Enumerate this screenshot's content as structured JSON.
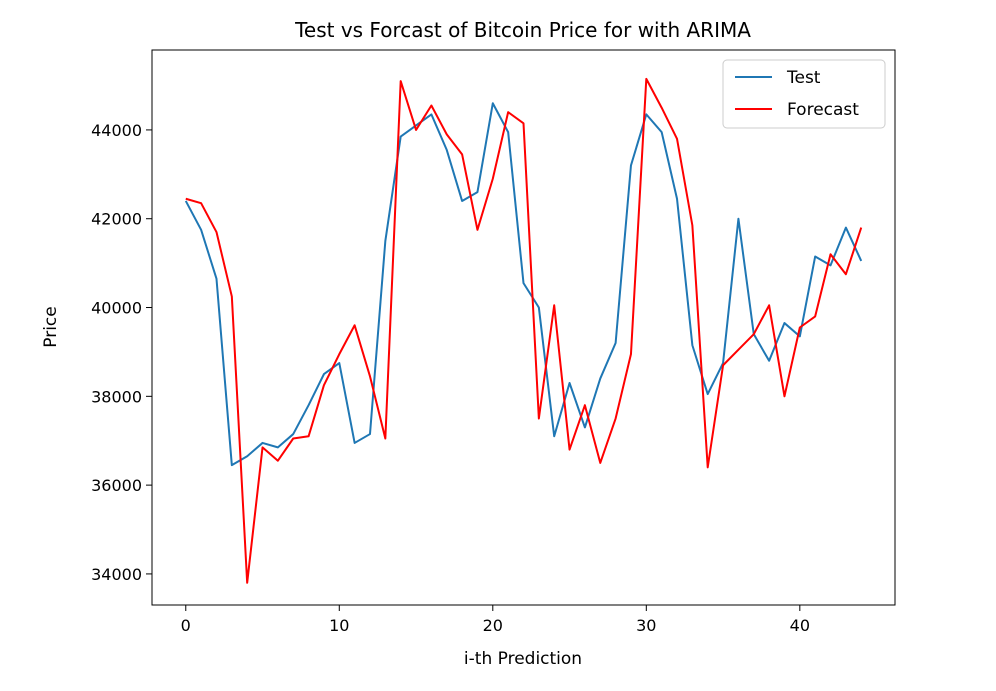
{
  "chart_data": {
    "type": "line",
    "title": "Test vs Forcast of Bitcoin Price for with ARIMA",
    "xlabel": "i-th Prediction",
    "ylabel": "Price",
    "xlim": [
      -2.2,
      46.2
    ],
    "ylim": [
      33300,
      45800
    ],
    "xticks": [
      0,
      10,
      20,
      30,
      40
    ],
    "yticks": [
      34000,
      36000,
      38000,
      40000,
      42000,
      44000
    ],
    "grid": false,
    "legend": "top-right",
    "x": [
      0,
      1,
      2,
      3,
      4,
      5,
      6,
      7,
      8,
      9,
      10,
      11,
      12,
      13,
      14,
      15,
      16,
      17,
      18,
      19,
      20,
      21,
      22,
      23,
      24,
      25,
      26,
      27,
      28,
      29,
      30,
      31,
      32,
      33,
      34,
      35,
      36,
      37,
      38,
      39,
      40,
      41,
      42,
      43,
      44
    ],
    "series": [
      {
        "name": "Test",
        "color": "#1f77b4",
        "values": [
          42400,
          41750,
          40650,
          36450,
          36650,
          36950,
          36850,
          37150,
          37800,
          38500,
          38750,
          36950,
          37150,
          41500,
          43850,
          44100,
          44350,
          43550,
          42400,
          42600,
          44600,
          43950,
          40550,
          40000,
          37100,
          38300,
          37300,
          38400,
          39200,
          43200,
          44350,
          43950,
          42450,
          39150,
          38050,
          38750,
          42000,
          39400,
          38800,
          39650,
          39350,
          41150,
          40950,
          41800,
          41050
        ]
      },
      {
        "name": "Forecast",
        "color": "#ff0000",
        "values": [
          42450,
          42350,
          41700,
          40250,
          33800,
          36850,
          36550,
          37050,
          37100,
          38250,
          38950,
          39600,
          38450,
          37050,
          45100,
          44000,
          44550,
          43900,
          43450,
          41750,
          42900,
          44400,
          44150,
          37500,
          40050,
          36800,
          37800,
          36500,
          37500,
          38950,
          45150,
          44500,
          43800,
          41850,
          36400,
          38700,
          39050,
          39400,
          40050,
          38000,
          39550,
          39800,
          41200,
          40750,
          41800
        ]
      }
    ]
  }
}
